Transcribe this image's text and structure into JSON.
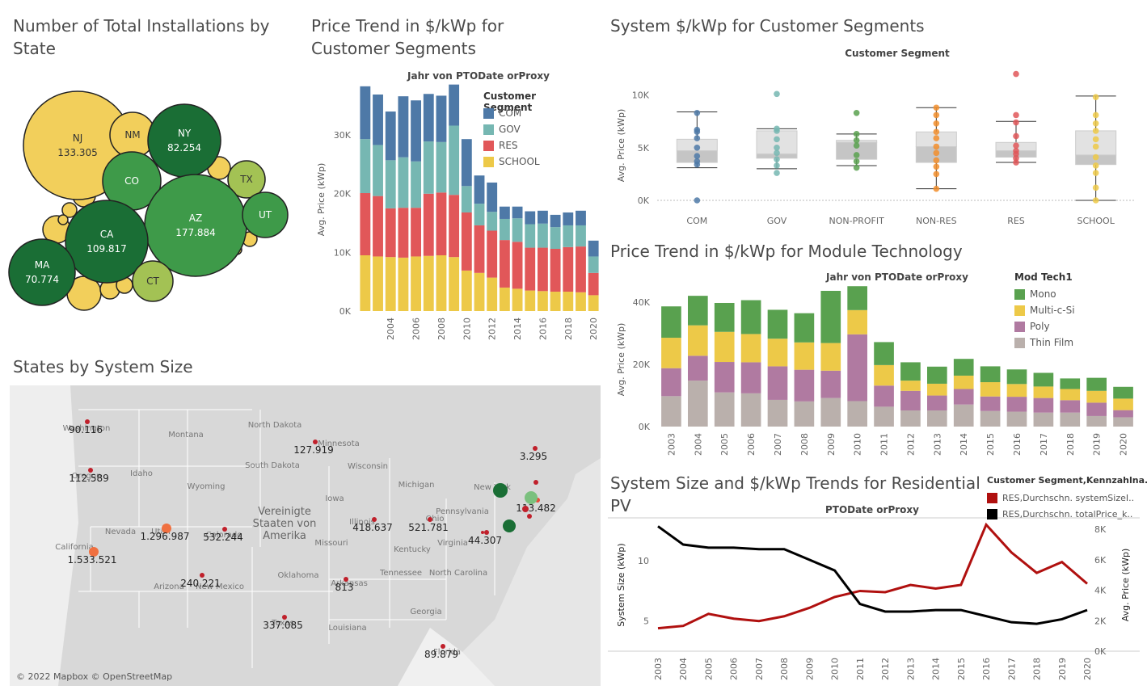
{
  "panels": {
    "bubbles_title": "Number of Total Installations by State",
    "map_title": "States by System Size",
    "segment_trend_title": "Price Trend in $/kWp for Customer Segments",
    "boxplot_title": "System $/kWp for Customer Segments",
    "module_title": "Price Trend in $/kWp for Module Technology",
    "residential_title": "System Size and $/kWp Trends for Residential PV"
  },
  "colors": {
    "yellow": "#f2cf5b",
    "green_dark": "#1a6e35",
    "green_mid": "#3e9a49",
    "green_light": "#a3c254",
    "com": "#4e79a7",
    "gov": "#76b7b2",
    "res": "#e15759",
    "school": "#edc948",
    "mono": "#59a14f",
    "multi": "#edc948",
    "poly": "#b07aa1",
    "thin": "#bab0ac",
    "size_line": "#b0100f",
    "price_line": "#000000"
  },
  "map": {
    "attribution": "© 2022 Mapbox © OpenStreetMap",
    "country_label": "Vereinigte Staaten von Amerika",
    "state_labels": [
      "Washington",
      "Oregon",
      "Idaho",
      "Montana",
      "North Dakota",
      "South Dakota",
      "Wyoming",
      "Minnesota",
      "Wisconsin",
      "Iowa",
      "Michigan",
      "Nevada",
      "Utah",
      "Colorado",
      "California",
      "Illinois",
      "Ohio",
      "Pennsylvania",
      "Missouri",
      "Kentucky",
      "Virginia",
      "Arizona",
      "New Mexico",
      "Oklahoma",
      "Arkansas",
      "Tennessee",
      "North Carolina",
      "Texas",
      "Louisiana",
      "Georgia",
      "Florida",
      "New York"
    ],
    "values": [
      {
        "label": "90.116"
      },
      {
        "label": "112.589"
      },
      {
        "label": "127.919"
      },
      {
        "label": "3.295"
      },
      {
        "label": "418.637"
      },
      {
        "label": "521.781"
      },
      {
        "label": "113.482"
      },
      {
        "label": "1.296.987"
      },
      {
        "label": "532.244"
      },
      {
        "label": "44.307"
      },
      {
        "label": "1.533.521"
      },
      {
        "label": "240.221"
      },
      {
        "label": "813"
      },
      {
        "label": "337.085"
      },
      {
        "label": "89.879"
      }
    ]
  },
  "chart_data": [
    {
      "type": "bubble",
      "title": "Number of Total Installations by State",
      "bubbles": [
        {
          "state": "NJ",
          "value": "133.305",
          "color": "#f2cf5b"
        },
        {
          "state": "NM",
          "value": "",
          "color": "#f2cf5b"
        },
        {
          "state": "NY",
          "value": "82.254",
          "color": "#1a6e35"
        },
        {
          "state": "CO",
          "value": "",
          "color": "#3e9a49"
        },
        {
          "state": "TX",
          "value": "",
          "color": "#a3c254"
        },
        {
          "state": "AZ",
          "value": "177.884",
          "color": "#3e9a49"
        },
        {
          "state": "UT",
          "value": "",
          "color": "#3e9a49"
        },
        {
          "state": "CA",
          "value": "109.817",
          "color": "#1a6e35"
        },
        {
          "state": "MA",
          "value": "70.774",
          "color": "#1a6e35"
        },
        {
          "state": "CT",
          "value": "",
          "color": "#a3c254"
        }
      ]
    },
    {
      "type": "bar",
      "stacked": true,
      "title": "Price Trend in $/kWp for Customer Segments",
      "subtitle": "Jahr von PTODate orProxy",
      "ylabel": "Avg. Price (kWp)",
      "yticks": [
        "0K",
        "10K",
        "20K",
        "30K"
      ],
      "ylim": [
        0,
        38000
      ],
      "xticks": [
        "2004",
        "2006",
        "2008",
        "2010",
        "2012",
        "2014",
        "2016",
        "2018",
        "2020"
      ],
      "legend_title": "Customer Segment",
      "categories": [
        "2002",
        "2003",
        "2004",
        "2005",
        "2006",
        "2007",
        "2008",
        "2009",
        "2010",
        "2011",
        "2012",
        "2013",
        "2014",
        "2015",
        "2016",
        "2017",
        "2018",
        "2019",
        "2020"
      ],
      "series": [
        {
          "name": "SCHOOL",
          "values": [
            9500,
            9300,
            9200,
            9100,
            9300,
            9400,
            9500,
            9200,
            6900,
            6500,
            5700,
            4000,
            3800,
            3500,
            3400,
            3300,
            3300,
            3200,
            2700
          ]
        },
        {
          "name": "RES",
          "values": [
            10600,
            10300,
            8300,
            8500,
            8300,
            10600,
            10700,
            10600,
            9900,
            8100,
            8000,
            8100,
            8000,
            7300,
            7400,
            7300,
            7600,
            7800,
            3800
          ]
        },
        {
          "name": "GOV",
          "values": [
            9200,
            8700,
            8200,
            8600,
            7900,
            8900,
            8600,
            11800,
            4500,
            3700,
            3200,
            3600,
            4000,
            4000,
            4100,
            3700,
            3700,
            3600,
            2800
          ]
        },
        {
          "name": "COM",
          "values": [
            9000,
            8600,
            8300,
            10400,
            10400,
            8100,
            7900,
            7000,
            8000,
            4800,
            5000,
            2100,
            2000,
            2200,
            2200,
            2100,
            2200,
            2500,
            2700
          ]
        }
      ]
    },
    {
      "type": "boxplot",
      "title": "System $/kWp for Customer Segments",
      "subtitle": "Customer Segment",
      "ylabel": "Avg. Price (kWp)",
      "yticks": [
        "0K",
        "5K",
        "10K"
      ],
      "ylim": [
        0,
        12500
      ],
      "categories": [
        "COM",
        "GOV",
        "NON-PROFIT",
        "NON-RES",
        "RES",
        "SCHOOL"
      ],
      "boxes": [
        {
          "min": 3100,
          "q1": 3600,
          "median": 4700,
          "q3": 5800,
          "max": 8400,
          "points": [
            0,
            3400,
            3700,
            4200,
            5000,
            5900,
            6500,
            6700,
            8300
          ]
        },
        {
          "min": 3000,
          "q1": 4000,
          "median": 4400,
          "q3": 6600,
          "max": 6800,
          "points": [
            2600,
            3300,
            3900,
            4500,
            5000,
            5800,
            6600,
            6800,
            10100
          ]
        },
        {
          "min": 3300,
          "q1": 3900,
          "median": 5500,
          "q3": 5700,
          "max": 6300,
          "points": [
            3100,
            3700,
            4300,
            5200,
            5700,
            6300,
            8300
          ]
        },
        {
          "min": 1100,
          "q1": 3600,
          "median": 5100,
          "q3": 6500,
          "max": 8800,
          "points": [
            1100,
            2500,
            3200,
            3800,
            4500,
            5100,
            5900,
            6500,
            7300,
            8100,
            8800
          ]
        },
        {
          "min": 3600,
          "q1": 4100,
          "median": 4700,
          "q3": 5500,
          "max": 7500,
          "points": [
            3600,
            4000,
            4400,
            4700,
            5200,
            6100,
            7400,
            8100,
            12000
          ]
        },
        {
          "min": 0,
          "q1": 3400,
          "median": 4300,
          "q3": 6600,
          "max": 9900,
          "points": [
            0,
            1200,
            2600,
            3300,
            4100,
            5100,
            5800,
            6600,
            7300,
            8100,
            9800
          ]
        }
      ]
    },
    {
      "type": "bar",
      "stacked": true,
      "title": "Price Trend in $/kWp for Module Technology",
      "subtitle": "Jahr von PTODate orProxy",
      "ylabel": "Avg. Price (kWp)",
      "yticks": [
        "0K",
        "20K",
        "40K"
      ],
      "ylim": [
        0,
        45000
      ],
      "legend_title": "Mod Tech1",
      "categories": [
        "2003",
        "2004",
        "2005",
        "2006",
        "2007",
        "2008",
        "2009",
        "2010",
        "2011",
        "2012",
        "2013",
        "2014",
        "2015",
        "2016",
        "2017",
        "2018",
        "2019",
        "2020"
      ],
      "series": [
        {
          "name": "Thin Film",
          "values": [
            9800,
            14800,
            11000,
            10700,
            8600,
            8100,
            9200,
            8200,
            6400,
            5200,
            5200,
            7100,
            5000,
            4800,
            4500,
            4500,
            3400,
            3000
          ]
        },
        {
          "name": "Poly",
          "values": [
            9000,
            8000,
            9800,
            10000,
            10800,
            10200,
            8800,
            21500,
            6800,
            6300,
            4800,
            5000,
            4700,
            4800,
            4700,
            4000,
            4300,
            2300
          ]
        },
        {
          "name": "Multi-c-Si",
          "values": [
            9800,
            9800,
            9700,
            9100,
            8900,
            8800,
            8900,
            7800,
            6600,
            3300,
            3800,
            4300,
            4600,
            4100,
            3700,
            3600,
            3800,
            3700
          ]
        },
        {
          "name": "Mono",
          "values": [
            10100,
            9500,
            9300,
            10900,
            9300,
            9400,
            16800,
            7700,
            7400,
            5900,
            5500,
            5400,
            5100,
            4700,
            4400,
            3400,
            4200,
            3800
          ]
        }
      ]
    },
    {
      "type": "line",
      "title": "System Size and $/kWp Trends for Residential PV",
      "subtitle": "PTODate orProxy",
      "legend_title": "Customer Segment,Kennzahlna..",
      "ylabel_left": "System Size (kWp)",
      "ylabel_right": "Avg. Price (kWp)",
      "yticks_left": [
        "5",
        "10"
      ],
      "yticks_right": [
        "0K",
        "2K",
        "4K",
        "6K",
        "8K"
      ],
      "ylim_left": [
        2.5,
        13.5
      ],
      "ylim_right": [
        0,
        8700
      ],
      "x": [
        "2003",
        "2004",
        "2005",
        "2006",
        "2007",
        "2008",
        "2009",
        "2010",
        "2011",
        "2012",
        "2013",
        "2014",
        "2015",
        "2016",
        "2017",
        "2018",
        "2019",
        "2020"
      ],
      "series": [
        {
          "name": "RES,Durchschn. systemSizeI..",
          "axis": "left",
          "values": [
            4.4,
            4.6,
            5.6,
            5.2,
            5.0,
            5.4,
            6.1,
            7.0,
            7.5,
            7.4,
            8.0,
            7.7,
            8.0,
            13.0,
            10.7,
            9.0,
            9.9,
            8.1
          ]
        },
        {
          "name": "RES,Durchschn. totalPrice_k..",
          "axis": "right",
          "values": [
            8200,
            7000,
            6800,
            6800,
            6700,
            6700,
            6000,
            5300,
            3100,
            2600,
            2600,
            2700,
            2700,
            2300,
            1900,
            1800,
            2100,
            2700
          ]
        }
      ]
    }
  ]
}
